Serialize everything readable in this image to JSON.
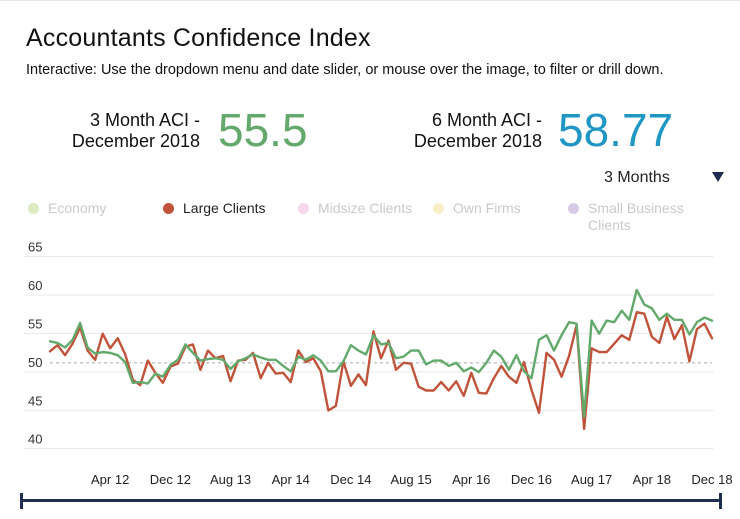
{
  "title": "Accountants Confidence Index",
  "subtitle": "Interactive: Use the dropdown menu and date slider, or mouse over the image, to filter or drill down.",
  "kpis": [
    {
      "label_line1": "3 Month ACI -",
      "label_line2": "December 2018",
      "value": "55.5",
      "color": "#62a96b"
    },
    {
      "label_line1": "6 Month ACI -",
      "label_line2": "December 2018",
      "value": "58.77",
      "color": "#1f96c4"
    }
  ],
  "dropdown": {
    "value": "3 Months"
  },
  "legend": [
    {
      "label": "Economy",
      "color": "#dcebc2",
      "active": false
    },
    {
      "label": "Large Clients",
      "color": "#c0533a",
      "active": true
    },
    {
      "label": "Midsize Clients",
      "color": "#f7d7ec",
      "active": false
    },
    {
      "label": "Own Firms",
      "color": "#f8efc8",
      "active": false
    },
    {
      "label": "Small Business Clients",
      "color": "#d8c9e6",
      "active": false
    }
  ],
  "colors": {
    "green": "#62a96b",
    "red": "#c0533a",
    "reference": "#aaaaaa",
    "grid": "#e9e9e9",
    "slider": "#1f2d50"
  },
  "chart_data": {
    "type": "line",
    "title": "Accountants Confidence Index",
    "ylim": [
      38,
      66
    ],
    "yticks": [
      40,
      45,
      50,
      55,
      60,
      65
    ],
    "reference_line": 50,
    "x_range": [
      0,
      88
    ],
    "xticks": [
      {
        "x": 8,
        "label": "Apr 12"
      },
      {
        "x": 16,
        "label": "Dec 12"
      },
      {
        "x": 24,
        "label": "Aug 13"
      },
      {
        "x": 32,
        "label": "Apr 14"
      },
      {
        "x": 40,
        "label": "Dec 14"
      },
      {
        "x": 48,
        "label": "Aug 15"
      },
      {
        "x": 56,
        "label": "Apr 16"
      },
      {
        "x": 64,
        "label": "Dec 16"
      },
      {
        "x": 72,
        "label": "Aug 17"
      },
      {
        "x": 80,
        "label": "Apr 18"
      },
      {
        "x": 88,
        "label": "Dec 18"
      }
    ],
    "series": [
      {
        "name": "3 Month ACI",
        "color": "#62a96b",
        "values": [
          52.8,
          52.6,
          52.0,
          53.0,
          55.2,
          52.0,
          51.2,
          51.4,
          51.3,
          51.0,
          50.1,
          47.4,
          47.5,
          47.3,
          48.6,
          48.2,
          49.7,
          50.4,
          52.4,
          51.3,
          50.3,
          50.5,
          50.6,
          50.4,
          49.2,
          50.2,
          50.6,
          51.1,
          50.7,
          50.4,
          50.4,
          49.6,
          48.9,
          50.8,
          50.4,
          51.0,
          50.3,
          48.9,
          48.9,
          50.2,
          52.3,
          51.6,
          51.1,
          53.6,
          52.4,
          52.6,
          50.6,
          50.8,
          51.6,
          51.6,
          49.8,
          50.3,
          50.3,
          49.6,
          50.0,
          48.9,
          49.4,
          48.8,
          50.0,
          51.6,
          50.8,
          49.1,
          51.0,
          48.9,
          48.0,
          53.0,
          53.6,
          51.6,
          53.6,
          55.3,
          55.1,
          43.0,
          55.5,
          53.8,
          55.5,
          55.3,
          56.8,
          55.6,
          59.5,
          57.6,
          57.1,
          55.6,
          56.4,
          55.6,
          55.6,
          53.7,
          55.3,
          55.9,
          55.5
        ]
      },
      {
        "name": "Large Clients",
        "color": "#c0533a",
        "values": [
          51.5,
          52.3,
          51.0,
          52.5,
          54.6,
          51.6,
          50.4,
          53.8,
          51.9,
          53.2,
          51.1,
          47.8,
          47.1,
          50.3,
          48.7,
          47.4,
          49.5,
          49.9,
          52.1,
          52.4,
          49.1,
          51.6,
          50.6,
          50.9,
          47.6,
          50.3,
          50.4,
          51.3,
          48.0,
          50.0,
          48.6,
          48.7,
          47.5,
          51.6,
          50.1,
          50.6,
          48.9,
          43.8,
          44.4,
          50.2,
          47.0,
          48.5,
          47.1,
          54.1,
          50.6,
          52.9,
          49.1,
          50.0,
          49.9,
          46.9,
          46.4,
          46.4,
          47.5,
          46.4,
          47.6,
          45.7,
          48.7,
          46.1,
          46.0,
          48.0,
          49.6,
          48.2,
          47.4,
          50.1,
          46.5,
          43.5,
          51.3,
          50.4,
          48.2,
          50.9,
          54.9,
          41.4,
          51.9,
          51.4,
          51.4,
          52.5,
          53.6,
          53.0,
          56.6,
          56.4,
          53.4,
          52.6,
          56.0,
          53.1,
          54.9,
          50.2,
          54.4,
          55.1,
          53.2
        ]
      }
    ]
  }
}
